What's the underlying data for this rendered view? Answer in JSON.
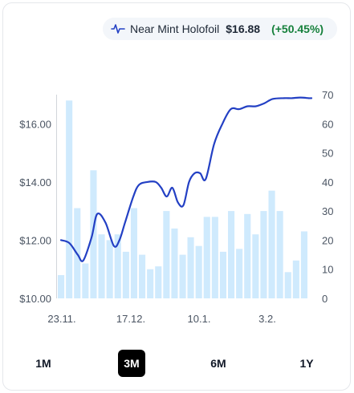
{
  "legend": {
    "icon": "pulse-icon",
    "label": "Near Mint Holofoil",
    "price": "$16.88",
    "change": "(+50.45%)"
  },
  "colors": {
    "line": "#2340c4",
    "bar": "#cfeafd",
    "active_range_bg": "#000000",
    "change_positive": "#16803c"
  },
  "ranges": [
    {
      "label": "1M",
      "active": false
    },
    {
      "label": "3M",
      "active": true
    },
    {
      "label": "6M",
      "active": false
    },
    {
      "label": "1Y",
      "active": false
    }
  ],
  "chart_data": {
    "type": "line",
    "x_tick_labels": [
      "23.11.",
      "17.12.",
      "10.1.",
      "3.2."
    ],
    "y_left": {
      "ticks": [
        "$10.00",
        "$12.00",
        "$14.00",
        "$16.00"
      ],
      "ylim": [
        10,
        17
      ]
    },
    "y_right": {
      "ticks": [
        "0",
        "10",
        "20",
        "30",
        "40",
        "50",
        "60",
        "70"
      ],
      "ylim": [
        0,
        70
      ]
    },
    "grid": false,
    "series": [
      {
        "role": "price",
        "axis": "left",
        "type": "line",
        "x": [
          0,
          3,
          6,
          8,
          11,
          13,
          16,
          19,
          21,
          23,
          26,
          28,
          31,
          34,
          36,
          38,
          40,
          42,
          44,
          46,
          48,
          50,
          52,
          55,
          58,
          61,
          64,
          67,
          70,
          73,
          76,
          80,
          83,
          86,
          89,
          90
        ],
        "values": [
          12.0,
          11.9,
          11.5,
          11.3,
          12.1,
          12.9,
          12.6,
          11.8,
          12.0,
          12.6,
          13.5,
          13.9,
          14.0,
          14.0,
          13.8,
          13.5,
          13.8,
          13.3,
          13.2,
          14.0,
          14.3,
          14.3,
          14.1,
          15.3,
          16.0,
          16.5,
          16.5,
          16.6,
          16.6,
          16.7,
          16.85,
          16.88,
          16.88,
          16.9,
          16.88,
          16.88
        ]
      },
      {
        "role": "volume",
        "axis": "right",
        "type": "bar",
        "values": [
          8,
          68,
          31,
          12,
          44,
          22,
          20,
          22,
          16,
          31,
          15,
          10,
          11,
          30,
          24,
          15,
          21,
          18,
          28,
          28,
          16,
          30,
          17,
          29,
          22,
          30,
          37,
          30,
          9,
          13,
          23
        ]
      }
    ]
  }
}
